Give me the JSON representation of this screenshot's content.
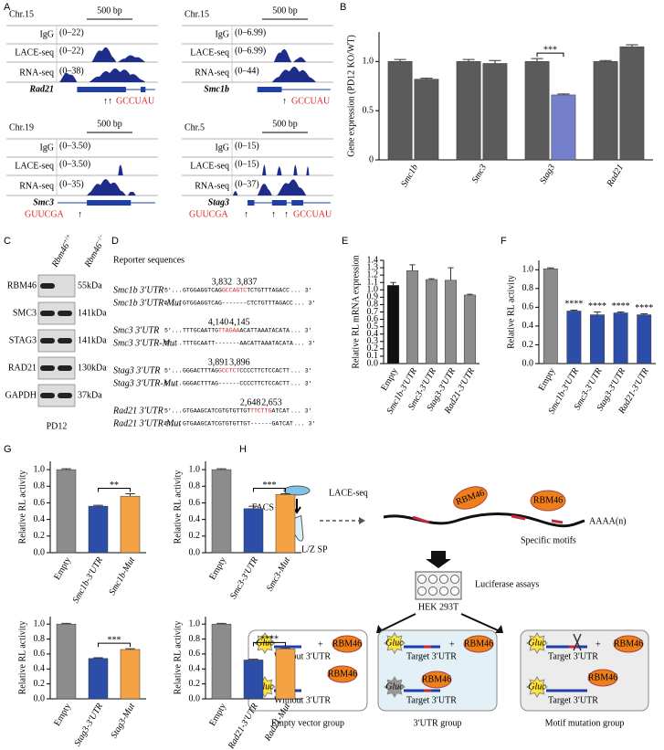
{
  "panel_labels": [
    "A",
    "B",
    "C",
    "D",
    "E",
    "F",
    "G",
    "H"
  ],
  "panel_a": {
    "tracks": [
      {
        "chromosome": "Chr.15",
        "scale": "500 bp",
        "rows": [
          {
            "label": "IgG",
            "range": "(0–22)"
          },
          {
            "label": "LACE-seq",
            "range": "(0–22)"
          },
          {
            "label": "RNA-seq",
            "range": "(0–38)"
          }
        ],
        "gene": "Rad21",
        "motifs": [
          "↑↑",
          "GCCUAU"
        ]
      },
      {
        "chromosome": "Chr.15",
        "scale": "500 bp",
        "rows": [
          {
            "label": "IgG",
            "range": "(0–6.99)"
          },
          {
            "label": "LACE-seq",
            "range": "(0–6.99)"
          },
          {
            "label": "RNA-seq",
            "range": "(0–44)"
          }
        ],
        "gene": "Smc1b",
        "motifs": [
          "↑",
          "GCCUAU"
        ]
      },
      {
        "chromosome": "Chr.19",
        "scale": "500 bp",
        "rows": [
          {
            "label": "IgG",
            "range": "(0–3.50)"
          },
          {
            "label": "LACE-seq",
            "range": "(0–3.50)"
          },
          {
            "label": "RNA-seq",
            "range": "(0–35)"
          }
        ],
        "gene": "Smc3",
        "motifs": [
          "GUUCGA",
          "↑"
        ]
      },
      {
        "chromosome": "Chr.5",
        "scale": "500 bp",
        "rows": [
          {
            "label": "IgG",
            "range": "(0–15)"
          },
          {
            "label": "LACE-seq",
            "range": "(0–15)"
          },
          {
            "label": "RNA-seq",
            "range": "(0–37)"
          }
        ],
        "gene": "Stag3",
        "motifs": [
          "GUUCGA",
          "↑",
          "↑",
          "↑",
          "GCCUAU"
        ]
      }
    ]
  },
  "panel_c": {
    "columns": [
      {
        "gene": "Rbm46",
        "genotype": "+/+"
      },
      {
        "gene": "Rbm46",
        "genotype": "−/−"
      }
    ],
    "rows": [
      {
        "protein": "RBM46",
        "size": "55kDa"
      },
      {
        "protein": "SMC3",
        "size": "141kDa"
      },
      {
        "protein": "STAG3",
        "size": "141kDa"
      },
      {
        "protein": "RAD21",
        "size": "130kDa"
      },
      {
        "protein": "GAPDH",
        "size": "37kDa"
      }
    ],
    "sample": "PD12"
  },
  "panel_d": {
    "title": "Reporter sequences",
    "start": "5′...",
    "end": "... 3′",
    "rows": [
      {
        "name": "Smc1b 3′UTR",
        "before": "GTGGAGGTCAG",
        "motif": "GCCAGTC",
        "after": "TCTGTTTAGACC",
        "positions": [
          "3,832",
          "3,837"
        ]
      },
      {
        "name": "Smc1b 3′UTR-Mut",
        "before": "GTGGAGGTCAG",
        "motif": "-------",
        "after": "CTCTGTTTAGACC"
      },
      {
        "name": "Smc3 3′UTR",
        "before": "TTTGCAATTG",
        "motif": "TTAGAA",
        "after": "ACATTAAATACATA",
        "positions": [
          "4,140",
          "4,145"
        ]
      },
      {
        "name": "Smc3 3′UTR-Mut",
        "before": "TTTGCAATT",
        "motif": "-------",
        "after": "AACATTAAATACATA"
      },
      {
        "name": "Stag3 3′UTR",
        "before": "GGGACTTTAG",
        "motif": "GCCTCT",
        "after": "CCCCTTCTCCACTT",
        "positions": [
          "3,891",
          "3,896"
        ]
      },
      {
        "name": "Stag3 3′UTR-Mut",
        "before": "GGGACTTTAG",
        "motif": "------",
        "after": "CCCCTTCTCCACTT"
      },
      {
        "name": "Rad21 3′UTR",
        "before": "GTGAAGCATCGTGTGTTGT",
        "motif": "TTCTTG",
        "after": "ATCAT",
        "positions": [
          "2,648",
          "2,653"
        ]
      },
      {
        "name": "Rad21 3′UTR-Mut",
        "before": "GTGAAGCATCGTGTGTTGT",
        "motif": "------",
        "after": "GATCAT"
      }
    ]
  },
  "panel_h": {
    "facs": "FACS",
    "method": "LACE-seq",
    "sample": "L/Z SP",
    "protein": "RBM46",
    "polya": "AAAA(n)",
    "motifs": "Specific motifs",
    "assay": "Luciferase assays",
    "cells": "HEK 293T",
    "reporter": "Gluc",
    "plus": "+",
    "without": "Without 3′UTR",
    "target": "Target 3′UTR",
    "groups": [
      "Empty vector group",
      "3′UTR group",
      "Motif mutation group"
    ]
  },
  "chart_data": [
    {
      "type": "bar",
      "ylabel": "Gene expression (PD12 KO/WT)",
      "categories": [
        "Smc1b",
        "Smc3",
        "Stag3",
        "Rad21"
      ],
      "series": [
        {
          "color": "#5b5b5b",
          "values": [
            1.0,
            1.0,
            1.0,
            1.0
          ],
          "errors": [
            0.02,
            0.02,
            0.03,
            0.01
          ]
        },
        {
          "colors": [
            "#5b5b5b",
            "#5b5b5b",
            "#7480cc",
            "#5b5b5b"
          ],
          "values": [
            0.82,
            0.98,
            0.66,
            1.15
          ],
          "errors": [
            0.01,
            0.03,
            0.01,
            0.02
          ]
        }
      ],
      "ylim": [
        0,
        1.3
      ],
      "yticks": [
        0,
        0.5,
        {
          "value": 1,
          "label": "1.0"
        }
      ],
      "annotations": [
        {
          "text": "***",
          "category": "Stag3"
        }
      ]
    },
    {
      "type": "bar",
      "ylabel": "Relative RL mRNA expression",
      "categories": [
        "Empty",
        "Smc1b-3′UTR",
        "Smc3-3′UTR",
        "Stag3-3′UTR",
        "Rad21-3′UTR"
      ],
      "values": [
        1.06,
        1.26,
        1.14,
        1.13,
        0.93
      ],
      "errors": [
        0.04,
        0.08,
        0.01,
        0.17,
        0.01
      ],
      "colors": [
        "#111111",
        "#8c8c8c",
        "#8c8c8c",
        "#8c8c8c",
        "#8c8c8c"
      ],
      "ylim": [
        0,
        1.4
      ],
      "yticks": [
        {
          "value": 0,
          "label": "0.0"
        },
        0.1,
        0.2,
        0.3,
        0.4,
        0.5,
        0.6,
        0.7,
        0.8,
        0.9,
        {
          "value": 1,
          "label": "1.0"
        },
        1.1,
        1.2,
        1.3,
        1.4
      ]
    },
    {
      "type": "bar",
      "ylabel": "Relative RL activity",
      "categories": [
        "Empty",
        "Smc1b-3′UTR",
        "Smc3-3′UTR",
        "Stag3-3′UTR",
        "Rad21-3′UTR"
      ],
      "values": [
        1.01,
        0.56,
        0.52,
        0.54,
        0.52
      ],
      "errors": [
        0.01,
        0.01,
        0.03,
        0.01,
        0.01
      ],
      "colors": [
        "#8c8c8c",
        "#2d4ea8",
        "#2d4ea8",
        "#2d4ea8",
        "#2d4ea8"
      ],
      "ylim": [
        0,
        1.1
      ],
      "yticks": [
        {
          "value": 0,
          "label": "0.0"
        },
        0.2,
        0.4,
        0.6,
        0.8,
        {
          "value": 1,
          "label": "1.0"
        }
      ],
      "annotations": [
        {
          "text": "****",
          "category": "Smc1b-3′UTR"
        },
        {
          "text": "****",
          "category": "Smc3-3′UTR"
        },
        {
          "text": "****",
          "category": "Stag3-3′UTR"
        },
        {
          "text": "****",
          "category": "Rad21-3′UTR"
        }
      ]
    },
    {
      "type": "bar",
      "ylabel": "Relative RL activity",
      "categories": [
        "Empty",
        "Smc1b-3′UTR",
        "Smc1b-Mut"
      ],
      "values": [
        1.0,
        0.56,
        0.68
      ],
      "errors": [
        0.01,
        0.01,
        0.03
      ],
      "colors": [
        "#8c8c8c",
        "#2d4ea8",
        "#f5a244"
      ],
      "ylim": [
        0,
        1.1
      ],
      "yticks": [
        {
          "value": 0,
          "label": "0.0"
        },
        0.2,
        0.4,
        0.6,
        0.8,
        {
          "value": 1,
          "label": "1.0"
        }
      ],
      "annotations": [
        {
          "text": "**",
          "from": "Smc1b-3′UTR",
          "to": "Smc1b-Mut"
        }
      ]
    },
    {
      "type": "bar",
      "ylabel": "Relative RL activity",
      "categories": [
        "Empty",
        "Smc3-3′UTR",
        "Smc3-Mut"
      ],
      "values": [
        1.0,
        0.53,
        0.7
      ],
      "errors": [
        0.01,
        0.03,
        0.01
      ],
      "colors": [
        "#8c8c8c",
        "#2d4ea8",
        "#f5a244"
      ],
      "ylim": [
        0,
        1.1
      ],
      "yticks": [
        {
          "value": 0,
          "label": "0.0"
        },
        0.2,
        0.4,
        0.6,
        0.8,
        {
          "value": 1,
          "label": "1.0"
        }
      ],
      "annotations": [
        {
          "text": "***",
          "from": "Smc3-3′UTR",
          "to": "Smc3-Mut"
        }
      ]
    },
    {
      "type": "bar",
      "ylabel": "Relative RL activity",
      "categories": [
        "Empty",
        "Stag3-3′UTR",
        "Stag3-Mut"
      ],
      "values": [
        1.0,
        0.54,
        0.66
      ],
      "errors": [
        0.01,
        0.01,
        0.01
      ],
      "colors": [
        "#8c8c8c",
        "#2d4ea8",
        "#f5a244"
      ],
      "ylim": [
        0,
        1.1
      ],
      "yticks": [
        {
          "value": 0,
          "label": "0.0"
        },
        0.2,
        0.4,
        0.6,
        0.8,
        {
          "value": 1,
          "label": "1.0"
        }
      ],
      "annotations": [
        {
          "text": "***",
          "from": "Stag3-3′UTR",
          "to": "Stag3-Mut"
        }
      ]
    },
    {
      "type": "bar",
      "ylabel": "Relative RL activity",
      "categories": [
        "Empty",
        "Rad21-3′UTR",
        "Rad21-Mut"
      ],
      "values": [
        1.0,
        0.52,
        0.67
      ],
      "errors": [
        0.01,
        0.01,
        0.01
      ],
      "colors": [
        "#8c8c8c",
        "#2d4ea8",
        "#f5a244"
      ],
      "ylim": [
        0,
        1.1
      ],
      "yticks": [
        {
          "value": 0,
          "label": "0.0"
        },
        0.2,
        0.4,
        0.6,
        0.8,
        {
          "value": 1,
          "label": "1.0"
        }
      ],
      "annotations": [
        {
          "text": "****",
          "from": "Rad21-3′UTR",
          "to": "Rad21-Mut"
        }
      ]
    }
  ]
}
